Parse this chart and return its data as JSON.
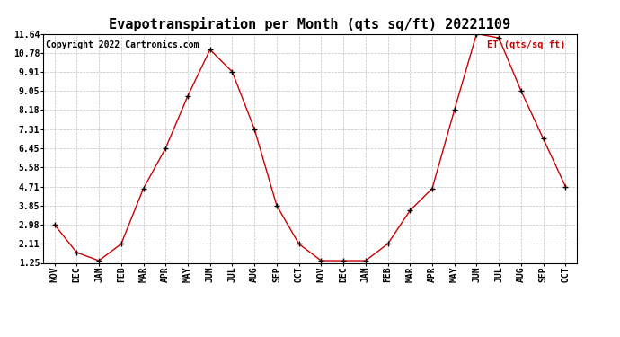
{
  "title": "Evapotranspiration per Month (qts sq/ft) 20221109",
  "copyright": "Copyright 2022 Cartronics.com",
  "legend_label": "ET (qts/sq ft)",
  "x_labels": [
    "NOV",
    "DEC",
    "JAN",
    "FEB",
    "MAR",
    "APR",
    "MAY",
    "JUN",
    "JUL",
    "AUG",
    "SEP",
    "OCT",
    "NOV",
    "DEC",
    "JAN",
    "FEB",
    "MAR",
    "APR",
    "MAY",
    "JUN",
    "JUL",
    "AUG",
    "SEP",
    "OCT"
  ],
  "y_values": [
    2.98,
    1.72,
    1.35,
    2.11,
    4.62,
    6.45,
    8.82,
    10.92,
    9.91,
    7.31,
    3.85,
    2.11,
    1.35,
    1.35,
    1.35,
    2.11,
    3.62,
    4.62,
    8.18,
    11.64,
    11.45,
    9.05,
    6.88,
    4.71
  ],
  "line_color": "#cc0000",
  "marker_color": "#000000",
  "background_color": "#ffffff",
  "grid_color": "#c0c0c0",
  "title_fontsize": 11,
  "copyright_fontsize": 7,
  "legend_fontsize": 7.5,
  "tick_fontsize": 7,
  "legend_color": "#cc0000",
  "ylim": [
    1.25,
    11.64
  ],
  "yticks": [
    1.25,
    2.11,
    2.98,
    3.85,
    4.71,
    5.58,
    6.45,
    7.31,
    8.18,
    9.05,
    9.91,
    10.78,
    11.64
  ]
}
